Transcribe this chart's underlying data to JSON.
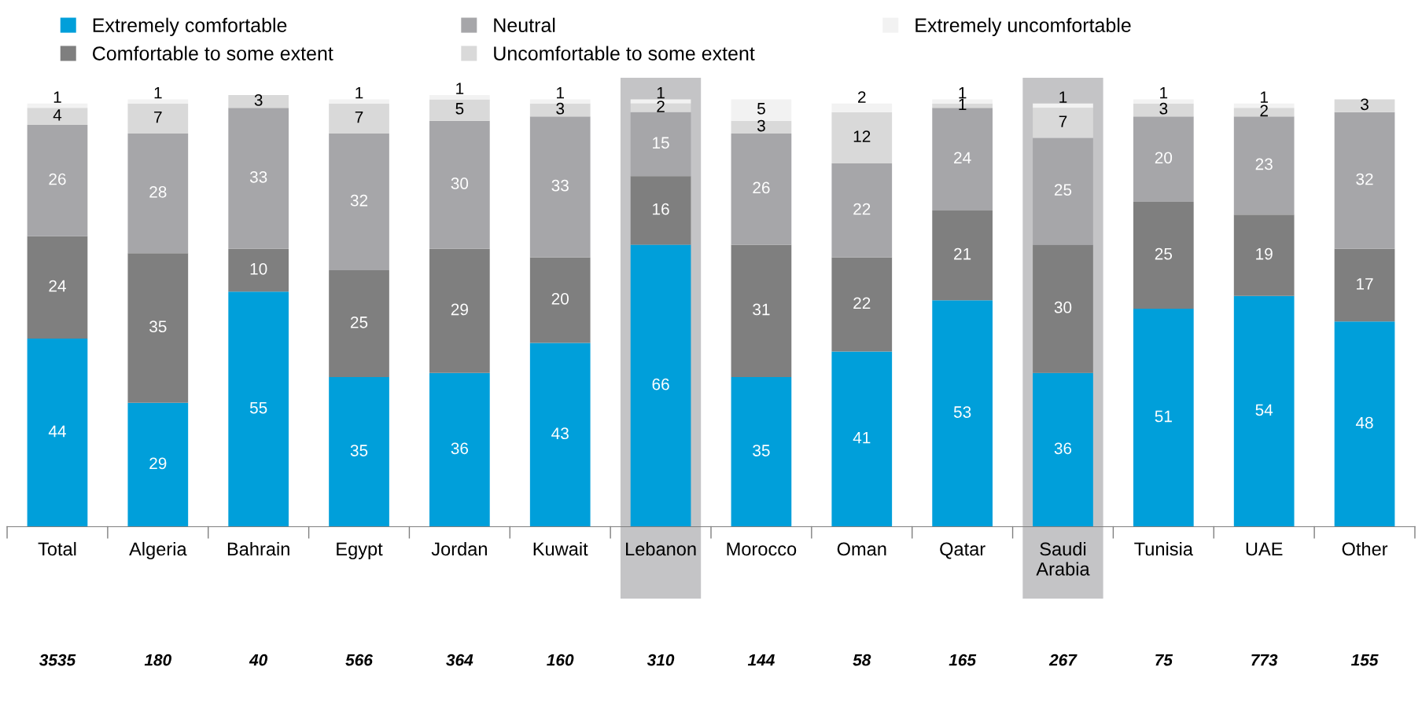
{
  "chart_data": {
    "type": "bar",
    "stacked": true,
    "data_labels": true,
    "legend": "top",
    "tick_labels": "x",
    "grid": false,
    "categories": [
      "Total",
      "Algeria",
      "Bahrain",
      "Egypt",
      "Jordan",
      "Kuwait",
      "Lebanon",
      "Morocco",
      "Oman",
      "Qatar",
      "Saudi\nArabia",
      "Tunisia",
      "UAE",
      "Other"
    ],
    "series": [
      {
        "name": "Extremely comfortable",
        "color": "#009fda",
        "values": [
          44,
          29,
          55,
          35,
          36,
          43,
          66,
          35,
          41,
          53,
          36,
          51,
          54,
          48
        ]
      },
      {
        "name": "Comfortable to some extent",
        "color": "#7f7f7f",
        "values": [
          24,
          35,
          10,
          25,
          29,
          20,
          16,
          31,
          22,
          21,
          30,
          25,
          19,
          17
        ]
      },
      {
        "name": "Neutral",
        "color": "#a6a6a9",
        "values": [
          26,
          28,
          33,
          32,
          30,
          33,
          15,
          26,
          22,
          24,
          25,
          20,
          23,
          32
        ]
      },
      {
        "name": "Uncomfortable to some extent",
        "color": "#d9d9d9",
        "values": [
          4,
          7,
          3,
          7,
          5,
          3,
          2,
          3,
          12,
          1,
          7,
          3,
          2,
          3
        ]
      },
      {
        "name": "Extremely uncomfortable",
        "color": "#f2f2f2",
        "values": [
          1,
          1,
          null,
          1,
          1,
          1,
          1,
          5,
          2,
          1,
          1,
          1,
          1,
          null
        ]
      }
    ],
    "annotations": [
      "3535",
      "180",
      "40",
      "566",
      "364",
      "160",
      "310",
      "144",
      "58",
      "165",
      "267",
      "75",
      "773",
      "155"
    ]
  }
}
